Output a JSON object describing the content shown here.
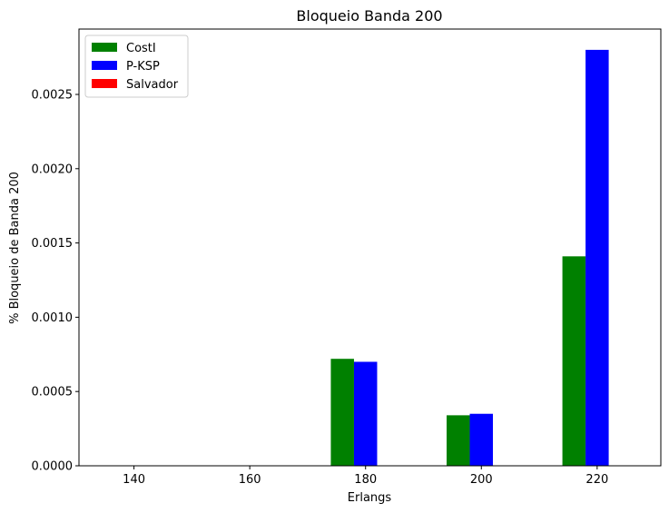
{
  "chart_data": {
    "type": "bar",
    "title": "Bloqueio Banda 200",
    "xlabel": "Erlangs",
    "ylabel": "% Bloqueio de Banda 200",
    "categories": [
      140,
      160,
      180,
      200,
      220
    ],
    "x_tick_labels": [
      "140",
      "160",
      "180",
      "200",
      "220"
    ],
    "y_ticks": [
      0.0,
      0.0005,
      0.001,
      0.0015,
      0.002,
      0.0025
    ],
    "y_tick_labels": [
      "0.0000",
      "0.0005",
      "0.0010",
      "0.0015",
      "0.0020",
      "0.0025"
    ],
    "xlim": [
      130.5,
      231.0
    ],
    "ylim": [
      0,
      0.00294
    ],
    "grid": false,
    "legend_position": "top-left",
    "series": [
      {
        "name": "CostI",
        "color": "#008000",
        "values": [
          0,
          0,
          0.00072,
          0.00034,
          0.00141
        ]
      },
      {
        "name": "P-KSP",
        "color": "#0000ff",
        "values": [
          0,
          0,
          0.0007,
          0.00035,
          0.0028
        ]
      },
      {
        "name": "Salvador",
        "color": "#ff0000",
        "values": [
          0,
          0,
          0,
          0,
          0
        ]
      }
    ]
  }
}
